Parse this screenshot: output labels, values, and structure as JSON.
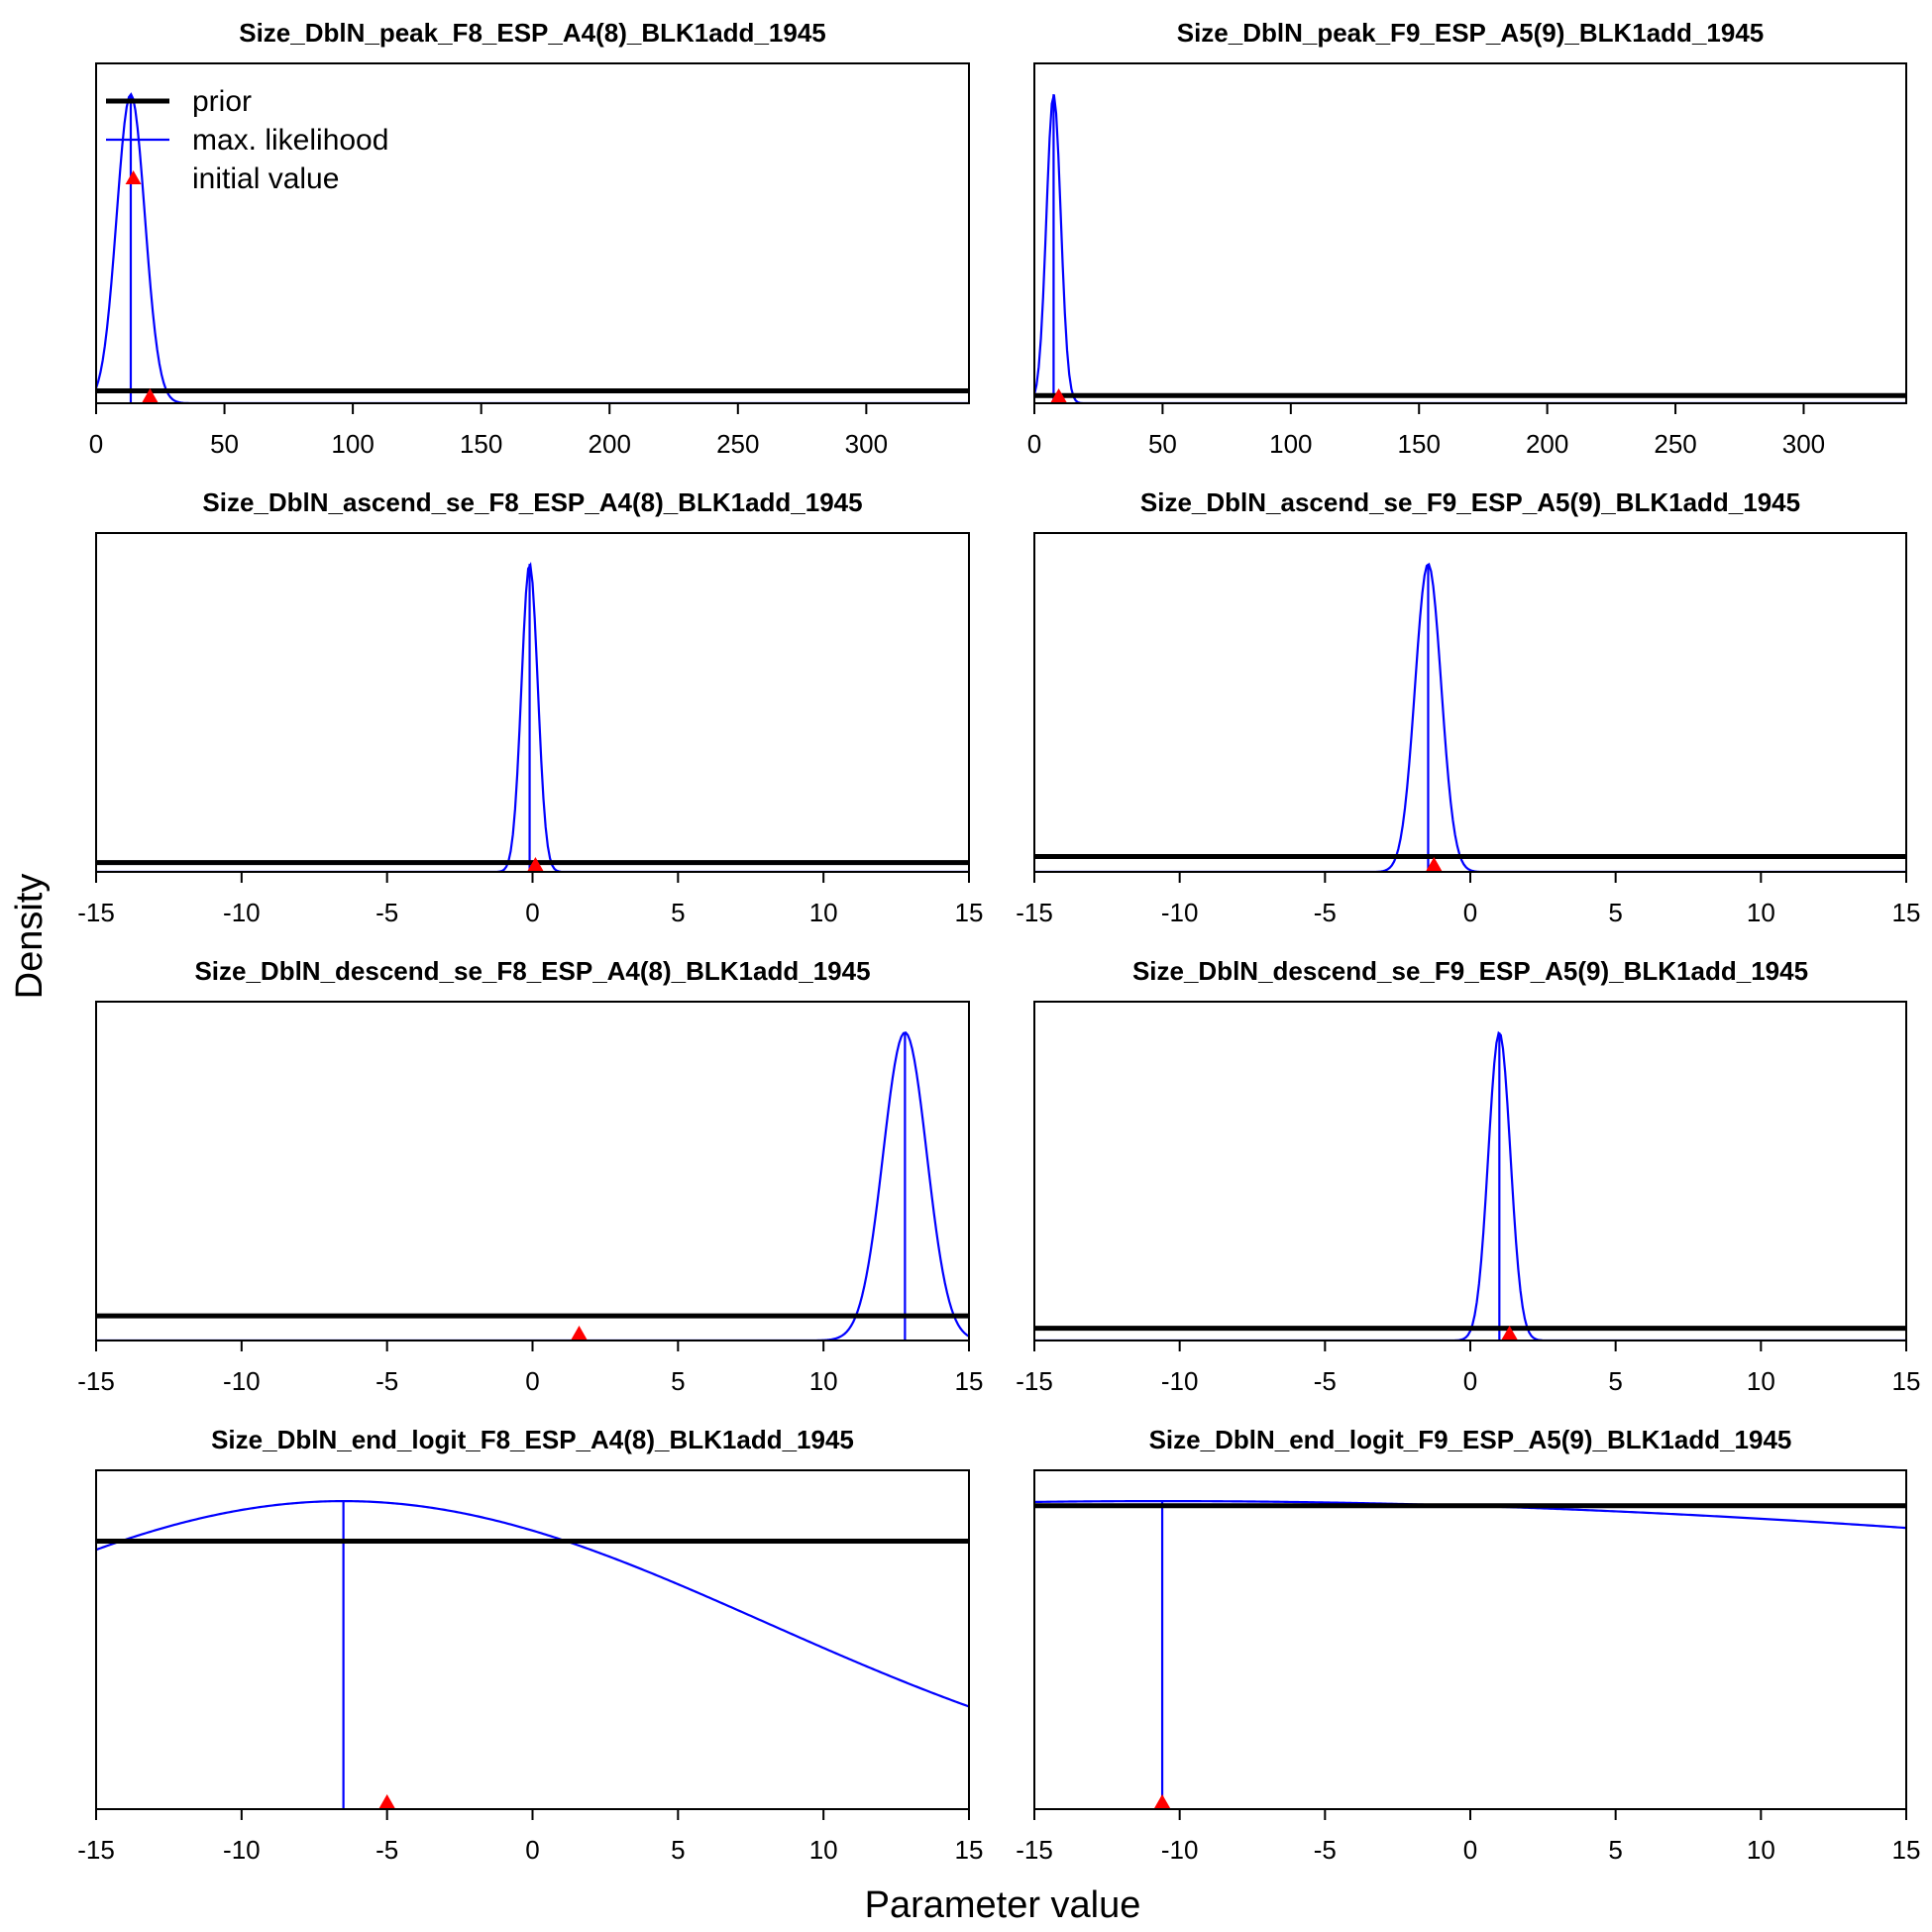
{
  "figure": {
    "xlabel": "Parameter value",
    "ylabel": "Density",
    "legend": {
      "placement": "top-left of first panel",
      "items": [
        {
          "label": "prior",
          "color": "#000000",
          "style": "thick-line"
        },
        {
          "label": "max. likelihood",
          "color": "#0000ff",
          "style": "thin-line"
        },
        {
          "label": "initial value",
          "color": "#ff0000",
          "style": "triangle"
        }
      ]
    }
  },
  "chart_data": [
    {
      "type": "line",
      "title": "Size_DblN_peak_F8_ESP_A4(8)_BLK1add_1945",
      "xlim": [
        0,
        340
      ],
      "xticks": [
        0,
        50,
        100,
        150,
        200,
        250,
        300
      ],
      "ylim": [
        0,
        1.1
      ],
      "prior_level": 0.04,
      "mle": 13.5,
      "mle_sd": 5.5,
      "init": 21,
      "likelihood_peak": 1.0,
      "likelihood_shape": "gaussian",
      "legend_marker_at": 14.5
    },
    {
      "type": "line",
      "title": "Size_DblN_peak_F9_ESP_A5(9)_BLK1add_1945",
      "xlim": [
        0,
        340
      ],
      "xticks": [
        0,
        50,
        100,
        150,
        200,
        250,
        300
      ],
      "ylim": [
        0,
        1.1
      ],
      "prior_level": 0.025,
      "mle": 7.5,
      "mle_sd": 2.8,
      "init": 9.5,
      "likelihood_peak": 1.0,
      "likelihood_shape": "gaussian"
    },
    {
      "type": "line",
      "title": "Size_DblN_ascend_se_F8_ESP_A4(8)_BLK1add_1945",
      "xlim": [
        -15,
        15
      ],
      "xticks": [
        -15,
        -10,
        -5,
        0,
        5,
        10,
        15
      ],
      "ylim": [
        0,
        1.1
      ],
      "prior_level": 0.03,
      "mle": -0.1,
      "mle_sd": 0.28,
      "init": 0.1,
      "likelihood_peak": 1.0,
      "likelihood_shape": "gaussian"
    },
    {
      "type": "line",
      "title": "Size_DblN_ascend_se_F9_ESP_A5(9)_BLK1add_1945",
      "xlim": [
        -15,
        15
      ],
      "xticks": [
        -15,
        -10,
        -5,
        0,
        5,
        10,
        15
      ],
      "ylim": [
        0,
        1.1
      ],
      "prior_level": 0.05,
      "mle": -1.45,
      "mle_sd": 0.45,
      "init": -1.25,
      "likelihood_peak": 1.0,
      "likelihood_shape": "gaussian"
    },
    {
      "type": "line",
      "title": "Size_DblN_descend_se_F8_ESP_A4(8)_BLK1add_1945",
      "xlim": [
        -15,
        15
      ],
      "xticks": [
        -15,
        -10,
        -5,
        0,
        5,
        10,
        15
      ],
      "ylim": [
        0,
        1.1
      ],
      "prior_level": 0.08,
      "mle": 12.8,
      "mle_sd": 0.75,
      "init": 1.6,
      "likelihood_peak": 1.0,
      "likelihood_shape": "gaussian"
    },
    {
      "type": "line",
      "title": "Size_DblN_descend_se_F9_ESP_A5(9)_BLK1add_1945",
      "xlim": [
        -15,
        15
      ],
      "xticks": [
        -15,
        -10,
        -5,
        0,
        5,
        10,
        15
      ],
      "ylim": [
        0,
        1.1
      ],
      "prior_level": 0.04,
      "mle": 1.0,
      "mle_sd": 0.38,
      "init": 1.35,
      "likelihood_peak": 1.0,
      "likelihood_shape": "gaussian"
    },
    {
      "type": "line",
      "title": "Size_DblN_end_logit_F8_ESP_A4(8)_BLK1add_1945",
      "xlim": [
        -15,
        15
      ],
      "xticks": [
        -15,
        -10,
        -5,
        0,
        5,
        10,
        15
      ],
      "ylim": [
        0,
        1.1
      ],
      "prior_level": 0.87,
      "mle": -6.5,
      "mle_sd": 14.5,
      "init": -5,
      "likelihood_peak": 1.0,
      "likelihood_shape": "gaussian"
    },
    {
      "type": "line",
      "title": "Size_DblN_end_logit_F9_ESP_A5(9)_BLK1add_1945",
      "xlim": [
        -15,
        15
      ],
      "xticks": [
        -15,
        -10,
        -5,
        0,
        5,
        10,
        15
      ],
      "ylim": [
        0,
        1.1
      ],
      "prior_level": 0.985,
      "mle": -10.6,
      "mle_sd": 60,
      "init": -10.6,
      "likelihood_peak": 1.0,
      "likelihood_shape": "gaussian"
    }
  ]
}
